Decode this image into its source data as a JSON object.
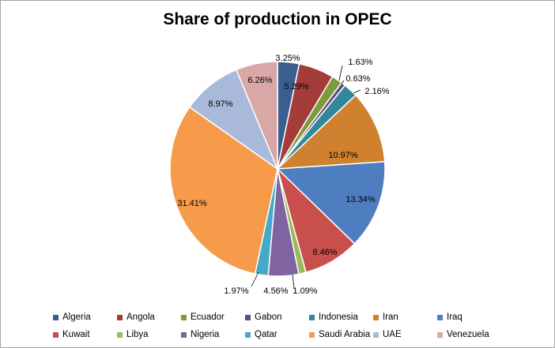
{
  "chart_data": {
    "type": "pie",
    "title": "Share of production in OPEC",
    "legend_position": "bottom",
    "slices": [
      {
        "label": "Algeria",
        "value": 3.25,
        "value_label": "3.25%",
        "color": "#3a5f8f"
      },
      {
        "label": "Angola",
        "value": 5.29,
        "value_label": "5.29%",
        "color": "#a43d3a"
      },
      {
        "label": "Ecuador",
        "value": 1.63,
        "value_label": "1.63%",
        "color": "#7f9a3d"
      },
      {
        "label": "Gabon",
        "value": 0.63,
        "value_label": "0.63%",
        "color": "#624b7f"
      },
      {
        "label": "Indonesia",
        "value": 2.16,
        "value_label": "2.16%",
        "color": "#31879c"
      },
      {
        "label": "Iran",
        "value": 10.97,
        "value_label": "10.97%",
        "color": "#d0812f"
      },
      {
        "label": "Iraq",
        "value": 13.34,
        "value_label": "13.34%",
        "color": "#4e7ec0"
      },
      {
        "label": "Kuwait",
        "value": 8.46,
        "value_label": "8.46%",
        "color": "#c84f4c"
      },
      {
        "label": "Libya",
        "value": 1.09,
        "value_label": "1.09%",
        "color": "#9bbb59"
      },
      {
        "label": "Nigeria",
        "value": 4.56,
        "value_label": "4.56%",
        "color": "#8064a2"
      },
      {
        "label": "Qatar",
        "value": 1.97,
        "value_label": "1.97%",
        "color": "#45aac7"
      },
      {
        "label": "Saudi Arabia",
        "value": 31.41,
        "value_label": "31.41%",
        "color": "#f59b4a"
      },
      {
        "label": "UAE",
        "value": 8.97,
        "value_label": "8.97%",
        "color": "#a9b9d9"
      },
      {
        "label": "Venezuela",
        "value": 6.26,
        "value_label": "6.26%",
        "color": "#d8a7a6"
      }
    ]
  }
}
